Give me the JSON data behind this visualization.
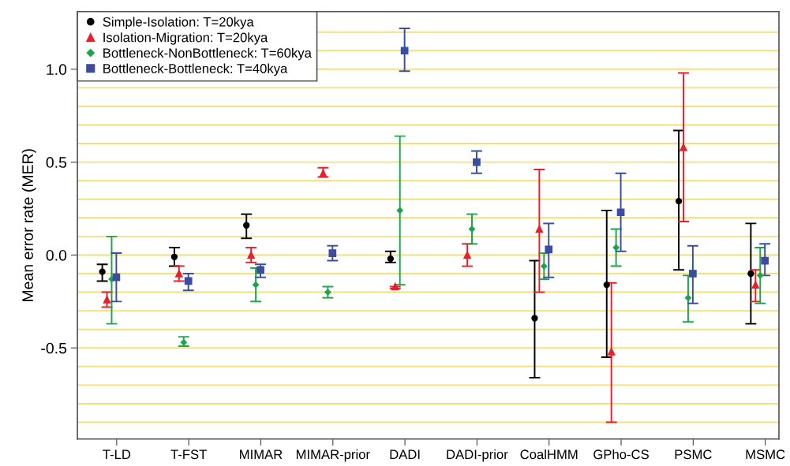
{
  "chart_data": {
    "type": "scatter",
    "ylabel": "Mean error rate (MER)",
    "categories": [
      "T-LD",
      "T-FST",
      "MIMAR",
      "MIMAR-prior",
      "DADI",
      "DADI-prior",
      "CoalHMM",
      "GPho-CS",
      "PSMC",
      "MSMC"
    ],
    "series": [
      {
        "name": "Simple-Isolation: T=20kya",
        "color": "#000000",
        "marker": "circle",
        "values": [
          -0.09,
          -0.01,
          0.16,
          null,
          -0.02,
          null,
          -0.34,
          -0.16,
          0.29,
          -0.1
        ],
        "errors": [
          [
            -0.14,
            -0.05
          ],
          [
            -0.06,
            0.04
          ],
          [
            0.09,
            0.22
          ],
          null,
          [
            -0.04,
            0.02
          ],
          null,
          [
            -0.66,
            -0.03
          ],
          [
            -0.55,
            0.24
          ],
          [
            -0.08,
            0.67
          ],
          [
            -0.37,
            0.17
          ]
        ]
      },
      {
        "name": "Isolation-Migration: T=20kya",
        "color": "#e8202a",
        "marker": "triangle",
        "values": [
          -0.24,
          -0.1,
          0.0,
          0.44,
          -0.17,
          0.0,
          0.14,
          -0.52,
          0.58,
          -0.16
        ],
        "errors": [
          [
            -0.28,
            -0.2
          ],
          [
            -0.14,
            -0.06
          ],
          [
            -0.04,
            0.04
          ],
          [
            0.42,
            0.47
          ],
          [
            -0.18,
            -0.17
          ],
          [
            -0.06,
            0.06
          ],
          [
            -0.2,
            0.46
          ],
          [
            -0.9,
            -0.15
          ],
          [
            0.18,
            0.98
          ],
          [
            -0.25,
            -0.08
          ]
        ]
      },
      {
        "name": "Bottleneck-NonBottleneck: T=60kya",
        "color": "#1aa64a",
        "marker": "diamond",
        "values": [
          -0.13,
          -0.47,
          -0.16,
          -0.2,
          0.24,
          0.14,
          -0.06,
          0.04,
          -0.23,
          -0.11
        ],
        "errors": [
          [
            -0.37,
            0.1
          ],
          [
            -0.49,
            -0.44
          ],
          [
            -0.25,
            -0.07
          ],
          [
            -0.23,
            -0.17
          ],
          [
            -0.16,
            0.64
          ],
          [
            0.06,
            0.22
          ],
          [
            -0.13,
            0.01
          ],
          [
            -0.06,
            0.14
          ],
          [
            -0.36,
            -0.11
          ],
          [
            -0.26,
            0.04
          ]
        ]
      },
      {
        "name": "Bottleneck-Bottleneck: T=40kya",
        "color": "#3a4da0",
        "marker": "square",
        "values": [
          -0.12,
          -0.14,
          -0.08,
          0.01,
          1.1,
          0.5,
          0.03,
          0.23,
          -0.1,
          -0.03
        ],
        "errors": [
          [
            -0.25,
            0.01
          ],
          [
            -0.19,
            -0.1
          ],
          [
            -0.12,
            -0.05
          ],
          [
            -0.03,
            0.05
          ],
          [
            0.99,
            1.22
          ],
          [
            0.44,
            0.56
          ],
          [
            -0.12,
            0.17
          ],
          [
            0.02,
            0.44
          ],
          [
            -0.26,
            0.05
          ],
          [
            -0.11,
            0.06
          ]
        ]
      }
    ],
    "ylim": [
      -0.99,
      1.31
    ],
    "yticks": [
      {
        "value": -0.9,
        "label": null
      },
      {
        "value": -0.8,
        "label": null
      },
      {
        "value": -0.7,
        "label": null
      },
      {
        "value": -0.6,
        "label": null
      },
      {
        "value": -0.5,
        "label": "-0.5"
      },
      {
        "value": -0.4,
        "label": null
      },
      {
        "value": -0.3,
        "label": null
      },
      {
        "value": -0.2,
        "label": null
      },
      {
        "value": -0.1,
        "label": null
      },
      {
        "value": 0,
        "label": "0.0"
      },
      {
        "value": 0.1,
        "label": null
      },
      {
        "value": 0.2,
        "label": null
      },
      {
        "value": 0.3,
        "label": null
      },
      {
        "value": 0.4,
        "label": null
      },
      {
        "value": 0.5,
        "label": "0.5"
      },
      {
        "value": 0.6,
        "label": null
      },
      {
        "value": 0.7,
        "label": null
      },
      {
        "value": 0.8,
        "label": null
      },
      {
        "value": 0.9,
        "label": null
      },
      {
        "value": 1.0,
        "label": "1.0"
      },
      {
        "value": 1.1,
        "label": null
      },
      {
        "value": 1.2,
        "label": null
      }
    ],
    "grid": "y",
    "legend": "top left"
  }
}
